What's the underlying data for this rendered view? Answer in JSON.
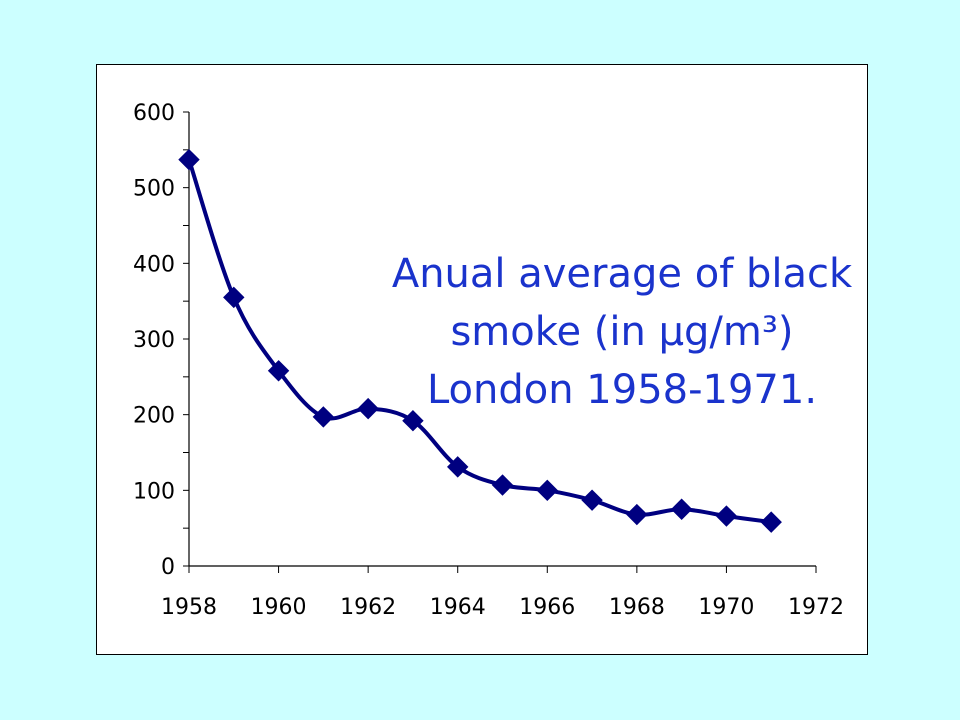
{
  "colors": {
    "background": "#ccffff",
    "line": "#000080",
    "title": "#1a33cc"
  },
  "chart_data": {
    "type": "line",
    "title_lines": [
      "Anual average of black",
      "smoke (in μg/m³)",
      "London 1958-1971."
    ],
    "xlabel": "",
    "ylabel": "",
    "xlim": [
      1958,
      1972
    ],
    "ylim": [
      0,
      600
    ],
    "x_ticks": [
      "1958",
      "1960",
      "1962",
      "1964",
      "1966",
      "1968",
      "1970",
      "1972"
    ],
    "y_ticks": [
      "0",
      "100",
      "200",
      "300",
      "400",
      "500",
      "600"
    ],
    "grid": false,
    "legend": "none",
    "marker": "diamond",
    "smoothed": true,
    "series": [
      {
        "x": [
          1958,
          1959,
          1960,
          1961,
          1962,
          1963,
          1964,
          1965,
          1966,
          1967,
          1968,
          1969,
          1970,
          1971
        ],
        "values": [
          537,
          355,
          258,
          197,
          208,
          192,
          131,
          107,
          100,
          87,
          68,
          75,
          66,
          58
        ]
      }
    ]
  }
}
